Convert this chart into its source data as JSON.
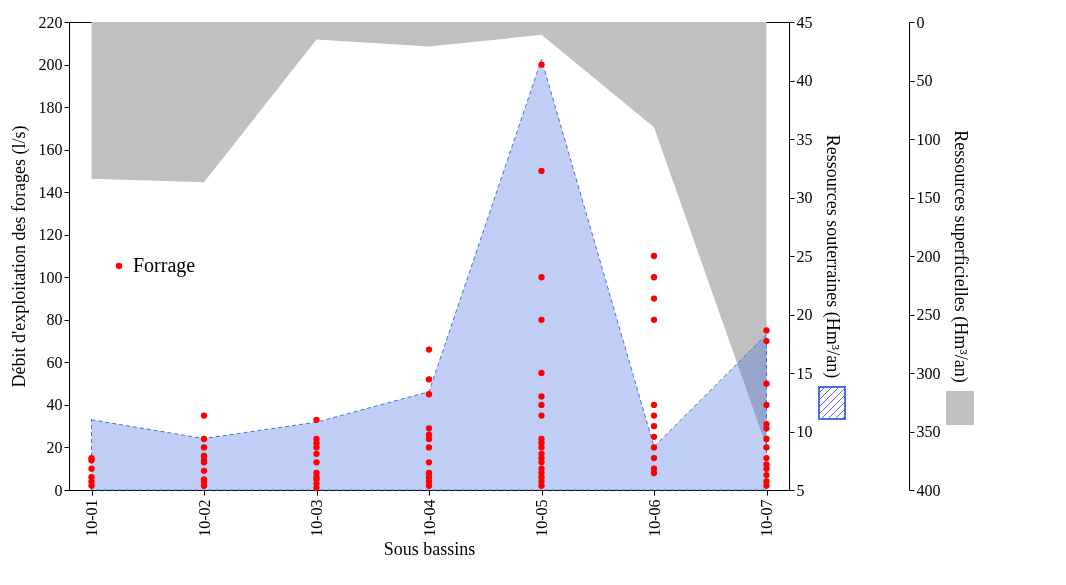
{
  "chart_data": {
    "type": "area",
    "xlabel": "Sous bassins",
    "ylabel": "Débit d'exploitation des forages (l/s)",
    "y2label": "Ressources souterraines (Hm³/an)",
    "y3label": "Ressources superficielles (Hm³/an)",
    "categories": [
      "10-01",
      "10-02",
      "10-03",
      "10-04",
      "10-05",
      "10-06",
      "10-07"
    ],
    "ylim": [
      0,
      220
    ],
    "yticks": [
      0,
      20,
      40,
      60,
      80,
      100,
      120,
      140,
      160,
      180,
      200,
      220
    ],
    "y2lim": [
      5,
      45
    ],
    "y2ticks": [
      5,
      10,
      15,
      20,
      25,
      30,
      35,
      40,
      45
    ],
    "y3lim": [
      400,
      0
    ],
    "y3ticks": [
      0,
      50,
      100,
      150,
      200,
      250,
      300,
      350,
      400
    ],
    "legend": "left",
    "series": [
      {
        "type": "area",
        "axis": "y3",
        "color": "#c0c0c0",
        "values": [
          134,
          137,
          15,
          21,
          11,
          90,
          363
        ]
      },
      {
        "axis": "y2",
        "color": "#4a6fe0",
        "line_style": "dashed",
        "values": [
          11,
          9.4,
          10.8,
          13.4,
          41.8,
          8.7,
          18.3
        ]
      },
      {
        "type": "scatter",
        "name": "Forrage",
        "color": "#ff0000",
        "marker": "circle",
        "x": [
          "10-01",
          "10-01",
          "10-01",
          "10-01",
          "10-01",
          "10-01",
          "10-02",
          "10-02",
          "10-02",
          "10-02",
          "10-02",
          "10-02",
          "10-02",
          "10-02",
          "10-02",
          "10-02",
          "10-03",
          "10-03",
          "10-03",
          "10-03",
          "10-03",
          "10-03",
          "10-03",
          "10-03",
          "10-03",
          "10-03",
          "10-03",
          "10-04",
          "10-04",
          "10-04",
          "10-04",
          "10-04",
          "10-04",
          "10-04",
          "10-04",
          "10-04",
          "10-04",
          "10-04",
          "10-04",
          "10-05",
          "10-05",
          "10-05",
          "10-05",
          "10-05",
          "10-05",
          "10-05",
          "10-05",
          "10-05",
          "10-05",
          "10-05",
          "10-05",
          "10-05",
          "10-05",
          "10-05",
          "10-05",
          "10-05",
          "10-05",
          "10-05",
          "10-06",
          "10-06",
          "10-06",
          "10-06",
          "10-06",
          "10-06",
          "10-06",
          "10-06",
          "10-06",
          "10-06",
          "10-06",
          "10-06",
          "10-07",
          "10-07",
          "10-07",
          "10-07",
          "10-07",
          "10-07",
          "10-07",
          "10-07",
          "10-07",
          "10-07",
          "10-07",
          "10-07",
          "10-07",
          "10-07"
        ],
        "values": [
          15,
          14,
          10,
          6,
          4,
          2,
          35,
          24,
          20,
          16,
          14,
          13,
          9,
          5,
          4,
          2,
          33,
          24,
          22,
          20,
          17,
          13,
          8,
          6,
          5,
          3,
          1,
          66,
          52,
          45,
          29,
          26,
          24,
          20,
          13,
          8,
          6,
          4,
          2,
          200,
          150,
          100,
          80,
          55,
          44,
          40,
          35,
          24,
          22,
          20,
          17,
          15,
          13,
          10,
          8,
          6,
          4,
          2,
          110,
          100,
          90,
          80,
          40,
          35,
          30,
          25,
          20,
          15,
          10,
          8,
          75,
          70,
          50,
          40,
          31,
          29,
          24,
          20,
          15,
          12,
          10,
          7,
          4,
          2
        ]
      }
    ]
  }
}
